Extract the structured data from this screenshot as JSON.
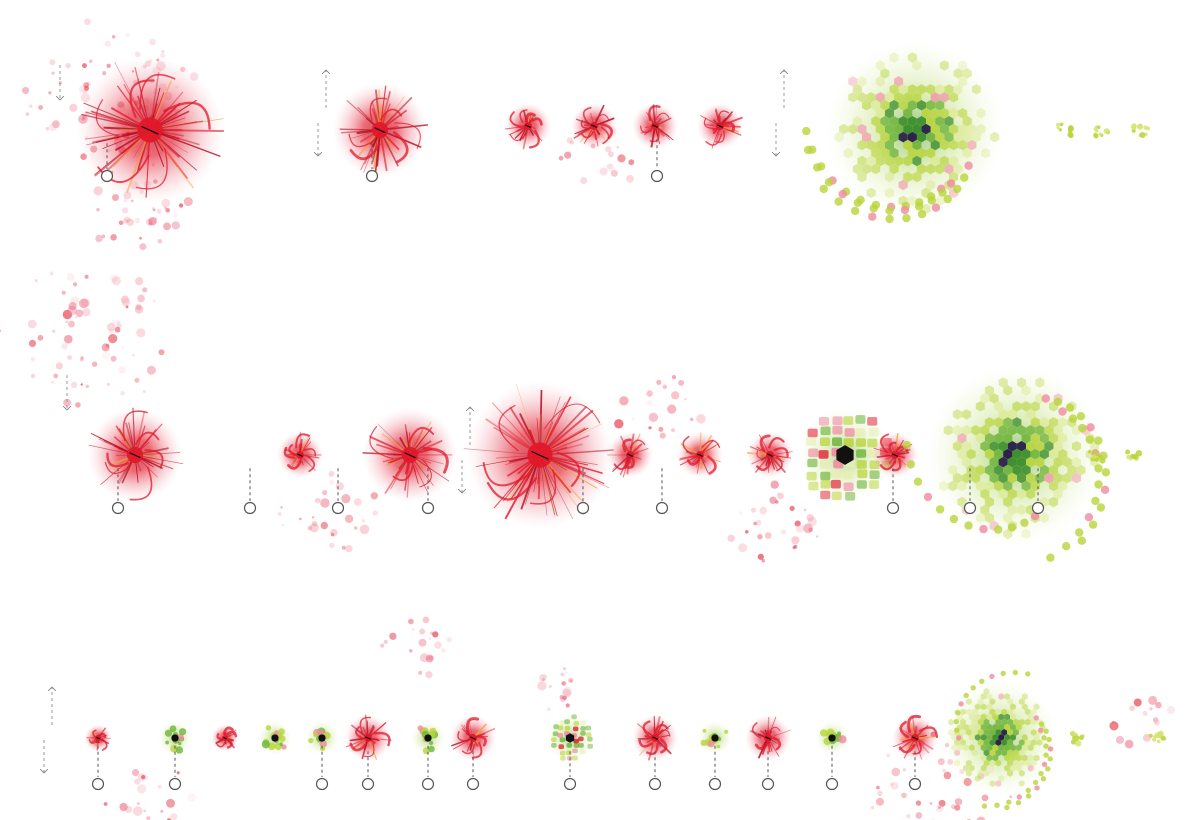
{
  "figure": {
    "description_rows": 3,
    "palette": {
      "red": "#e0182a",
      "red_dark": "#b00d1f",
      "pink": "#f08aa0",
      "pale_pink": "#f6b9c5",
      "orange": "#f2a23a",
      "lime": "#b8d43a",
      "green": "#6fb43a",
      "dark_green": "#3f8f2e",
      "navy": "#2a1f4a",
      "black": "#111111",
      "marker": "#555555"
    },
    "rows": [
      {
        "id": "row-1",
        "items": [
          {
            "kind": "red-flower",
            "size": "large",
            "marker": true,
            "arrows": "down"
          },
          {
            "kind": "red-flower",
            "size": "medium",
            "marker": true,
            "arrows": "up-down"
          },
          {
            "kind": "red-flower",
            "size": "small",
            "marker": false
          },
          {
            "kind": "red-flower",
            "size": "small",
            "marker": false
          },
          {
            "kind": "red-flower",
            "size": "small",
            "marker": true
          },
          {
            "kind": "red-flower",
            "size": "small",
            "marker": false,
            "arrows": "up-down"
          },
          {
            "kind": "green-hex-cluster",
            "size": "large",
            "marker": false
          },
          {
            "kind": "green-tiny",
            "size": "tiny",
            "marker": false
          },
          {
            "kind": "green-tiny",
            "size": "tiny",
            "marker": false
          },
          {
            "kind": "green-tiny",
            "size": "tiny",
            "marker": false
          }
        ]
      },
      {
        "id": "row-2",
        "items": [
          {
            "kind": "red-flower",
            "size": "medium",
            "marker": true,
            "arrows": "down"
          },
          {
            "kind": "red-flower",
            "size": "small",
            "marker": true
          },
          {
            "kind": "red-flower",
            "size": "medium",
            "marker": true
          },
          {
            "kind": "red-flower",
            "size": "large",
            "marker": true,
            "arrows": "up-down"
          },
          {
            "kind": "red-flower",
            "size": "small",
            "marker": true
          },
          {
            "kind": "red-flower",
            "size": "small",
            "marker": true
          },
          {
            "kind": "red-flower",
            "size": "small",
            "marker": false
          },
          {
            "kind": "mixed-cluster",
            "size": "medium",
            "marker": true
          },
          {
            "kind": "red-flower",
            "size": "small",
            "marker": true
          },
          {
            "kind": "green-hex-cluster",
            "size": "large",
            "marker": true
          },
          {
            "kind": "green-tiny",
            "size": "tiny",
            "marker": false
          },
          {
            "kind": "green-tiny",
            "size": "tiny",
            "marker": false
          }
        ]
      },
      {
        "id": "row-3",
        "items": [
          {
            "kind": "red-flower",
            "size": "tiny",
            "marker": true,
            "arrows": "up-down"
          },
          {
            "kind": "green-small-cluster",
            "size": "tiny",
            "marker": true
          },
          {
            "kind": "red-flower",
            "size": "tiny",
            "marker": false
          },
          {
            "kind": "green-small-cluster",
            "size": "tiny",
            "marker": false
          },
          {
            "kind": "green-small-cluster",
            "size": "tiny",
            "marker": true
          },
          {
            "kind": "red-flower",
            "size": "small",
            "marker": true
          },
          {
            "kind": "green-small-cluster",
            "size": "tiny",
            "marker": true
          },
          {
            "kind": "red-flower",
            "size": "small",
            "marker": true
          },
          {
            "kind": "mixed-cluster",
            "size": "small",
            "marker": true
          },
          {
            "kind": "red-flower",
            "size": "small",
            "marker": true
          },
          {
            "kind": "green-small-cluster",
            "size": "tiny",
            "marker": true
          },
          {
            "kind": "red-flower",
            "size": "small",
            "marker": true
          },
          {
            "kind": "green-small-cluster",
            "size": "tiny",
            "marker": true
          },
          {
            "kind": "red-flower",
            "size": "small",
            "marker": true
          },
          {
            "kind": "green-hex-cluster",
            "size": "medium",
            "marker": false
          },
          {
            "kind": "green-tiny",
            "size": "tiny",
            "marker": false
          },
          {
            "kind": "green-tiny",
            "size": "tiny",
            "marker": false
          }
        ]
      }
    ]
  }
}
